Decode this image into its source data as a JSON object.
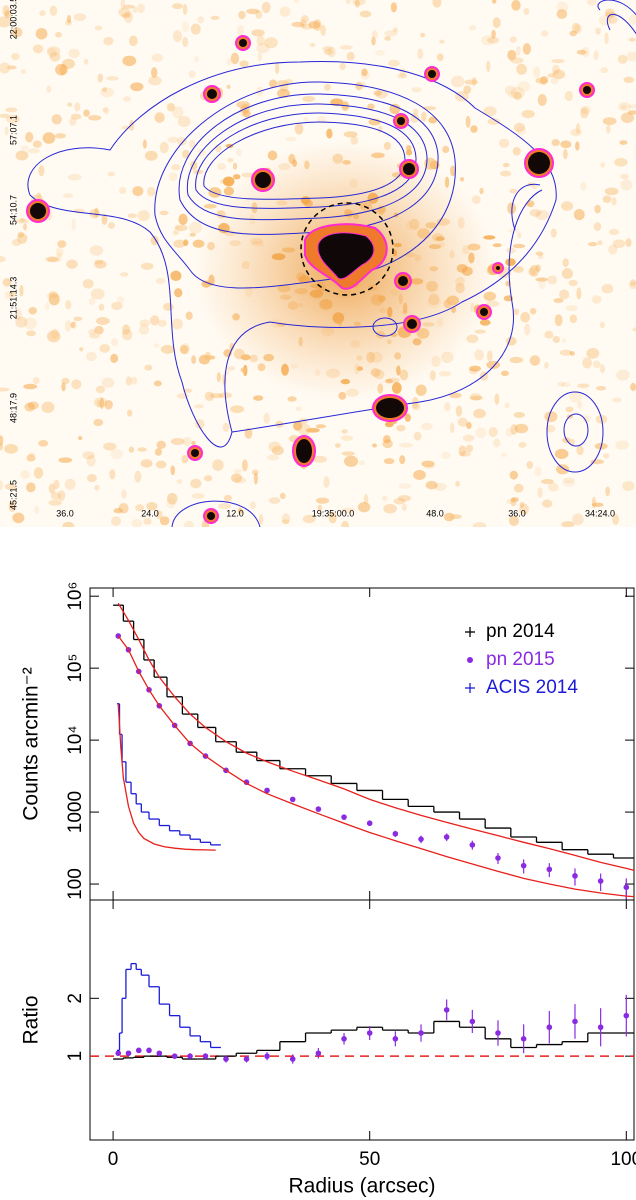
{
  "image": {
    "dec_labels": [
      "22:00:03.5",
      "57:07.1",
      "54:10.7",
      "21:51:14.3",
      "48:17.9",
      "45:21.5"
    ],
    "ra_labels": [
      "36.0",
      "24.0",
      "12.0",
      "19:35:00.0",
      "48.0",
      "36.0",
      "34:24.0"
    ]
  },
  "chart_data": [
    {
      "type": "line",
      "log_y": true,
      "ylabel": "Counts arcmin⁻²",
      "legend": "upper right",
      "xlim": [
        -4.5,
        101.5
      ],
      "xticks": [
        0,
        50,
        100
      ],
      "ylim": [
        60,
        1300000
      ],
      "yticks": [
        {
          "value": 1000000,
          "label": "10⁶"
        },
        {
          "value": 100000,
          "label": "10⁵"
        },
        {
          "value": 10000,
          "label": "10⁴"
        },
        1000,
        100
      ],
      "series": [
        {
          "name": "pn 2014",
          "color": "#000000",
          "style": "step",
          "x": [
            1,
            3,
            5,
            7,
            9,
            12,
            15,
            18,
            22,
            26,
            30,
            35,
            40,
            45,
            50,
            55,
            60,
            65,
            70,
            75,
            80,
            85,
            90,
            95,
            100,
            104
          ],
          "values": [
            750000,
            450000,
            250000,
            130000,
            75000,
            40000,
            23000,
            15000,
            9500,
            6800,
            5200,
            4000,
            3200,
            2500,
            2000,
            1500,
            1200,
            1000,
            800,
            600,
            450,
            380,
            300,
            260,
            230,
            210
          ]
        },
        {
          "name": "pn 2015",
          "color": "#8a2be2",
          "style": "points",
          "x": [
            1,
            3,
            5,
            7,
            9,
            12,
            15,
            18,
            22,
            26,
            30,
            35,
            40,
            45,
            50,
            55,
            60,
            65,
            70,
            75,
            80,
            85,
            90,
            95,
            100,
            104
          ],
          "values": [
            280000,
            180000,
            90000,
            50000,
            30000,
            16000,
            9000,
            6000,
            3800,
            2600,
            2000,
            1500,
            1100,
            850,
            700,
            500,
            420,
            450,
            350,
            230,
            180,
            160,
            130,
            110,
            90,
            75
          ],
          "errors": [
            8000,
            5000,
            2500,
            1500,
            900,
            500,
            300,
            200,
            150,
            110,
            90,
            80,
            70,
            60,
            60,
            50,
            50,
            55,
            50,
            40,
            40,
            35,
            35,
            30,
            30,
            28
          ]
        },
        {
          "name": "ACIS 2014",
          "color": "#1c1cd8",
          "style": "step",
          "x": [
            1,
            1.5,
            2,
            3,
            4,
            5,
            6,
            8,
            10,
            12,
            14,
            16,
            18,
            20
          ],
          "values": [
            32000,
            12000,
            5000,
            2600,
            1800,
            1300,
            1000,
            800,
            650,
            550,
            480,
            420,
            380,
            350
          ]
        },
        {
          "color": "#e8201c",
          "style": "line",
          "x": [
            1,
            3,
            5,
            7,
            9,
            12,
            15,
            18,
            22,
            26,
            30,
            35,
            40,
            45,
            50,
            55,
            60,
            65,
            70,
            75,
            80,
            85,
            90,
            95,
            100,
            104
          ],
          "values": [
            800000,
            460000,
            250000,
            130000,
            75000,
            40000,
            23000,
            15000,
            9500,
            6600,
            5000,
            3700,
            2800,
            2100,
            1500,
            1150,
            900,
            720,
            580,
            470,
            380,
            310,
            250,
            200,
            165,
            140
          ]
        },
        {
          "color": "#e8201c",
          "style": "line",
          "x": [
            1,
            3,
            5,
            7,
            9,
            12,
            15,
            18,
            22,
            26,
            30,
            35,
            40,
            45,
            50,
            55,
            60,
            65,
            70,
            75,
            80,
            85,
            90,
            95,
            100,
            104
          ],
          "values": [
            280000,
            180000,
            90000,
            50000,
            30000,
            16000,
            9000,
            6000,
            3800,
            2500,
            1800,
            1300,
            950,
            700,
            520,
            400,
            310,
            240,
            190,
            150,
            120,
            100,
            85,
            75,
            68,
            65
          ]
        },
        {
          "color": "#e8201c",
          "style": "line",
          "x": [
            1,
            1.5,
            2,
            3,
            4,
            5,
            6,
            8,
            10,
            12,
            14,
            16,
            18,
            20
          ],
          "values": [
            32000,
            8000,
            3000,
            1200,
            700,
            520,
            430,
            360,
            330,
            315,
            305,
            300,
            298,
            296
          ]
        }
      ]
    },
    {
      "type": "line",
      "ylabel": "Ratio",
      "xlabel": "Radius (arcsec)",
      "refline": 1,
      "xlim": [
        -4.5,
        101.5
      ],
      "xticks": [
        0,
        50,
        100
      ],
      "ylim": [
        -0.45,
        3.7
      ],
      "yticks": [
        1,
        2
      ],
      "series": [
        {
          "color": "#000000",
          "style": "step",
          "x": [
            1,
            3,
            5,
            7,
            9,
            12,
            15,
            18,
            22,
            26,
            30,
            35,
            40,
            45,
            50,
            55,
            60,
            65,
            70,
            75,
            80,
            85,
            90,
            95,
            100,
            104
          ],
          "values": [
            0.95,
            0.97,
            0.98,
            1,
            1,
            0.98,
            0.95,
            0.95,
            1,
            1.05,
            1.1,
            1.25,
            1.4,
            1.45,
            1.5,
            1.45,
            1.4,
            1.6,
            1.5,
            1.3,
            1.15,
            1.2,
            1.25,
            1.4,
            1.4,
            1.5
          ]
        },
        {
          "color": "#8a2be2",
          "style": "points",
          "x": [
            1,
            3,
            5,
            7,
            9,
            12,
            15,
            18,
            22,
            26,
            30,
            35,
            40,
            45,
            50,
            55,
            60,
            65,
            70,
            75,
            80,
            85,
            90,
            95,
            100,
            104
          ],
          "values": [
            1.05,
            1.05,
            1.1,
            1.1,
            1.05,
            1,
            1,
            1,
            0.95,
            0.95,
            1,
            0.95,
            1.05,
            1.3,
            1.4,
            1.3,
            1.4,
            1.8,
            1.6,
            1.4,
            1.3,
            1.5,
            1.6,
            1.5,
            1.7,
            1.6
          ],
          "errors": [
            0.04,
            0.04,
            0.04,
            0.04,
            0.04,
            0.04,
            0.05,
            0.05,
            0.06,
            0.06,
            0.07,
            0.08,
            0.09,
            0.1,
            0.12,
            0.13,
            0.15,
            0.18,
            0.2,
            0.22,
            0.25,
            0.28,
            0.3,
            0.33,
            0.36,
            0.4
          ]
        },
        {
          "color": "#1c1cd8",
          "style": "step",
          "x": [
            1,
            1.5,
            2,
            3,
            4,
            5,
            6,
            8,
            10,
            12,
            14,
            16,
            18,
            20
          ],
          "values": [
            1.1,
            1.4,
            2,
            2.5,
            2.6,
            2.5,
            2.4,
            2.2,
            1.9,
            1.7,
            1.5,
            1.35,
            1.25,
            1.15
          ]
        }
      ]
    }
  ]
}
